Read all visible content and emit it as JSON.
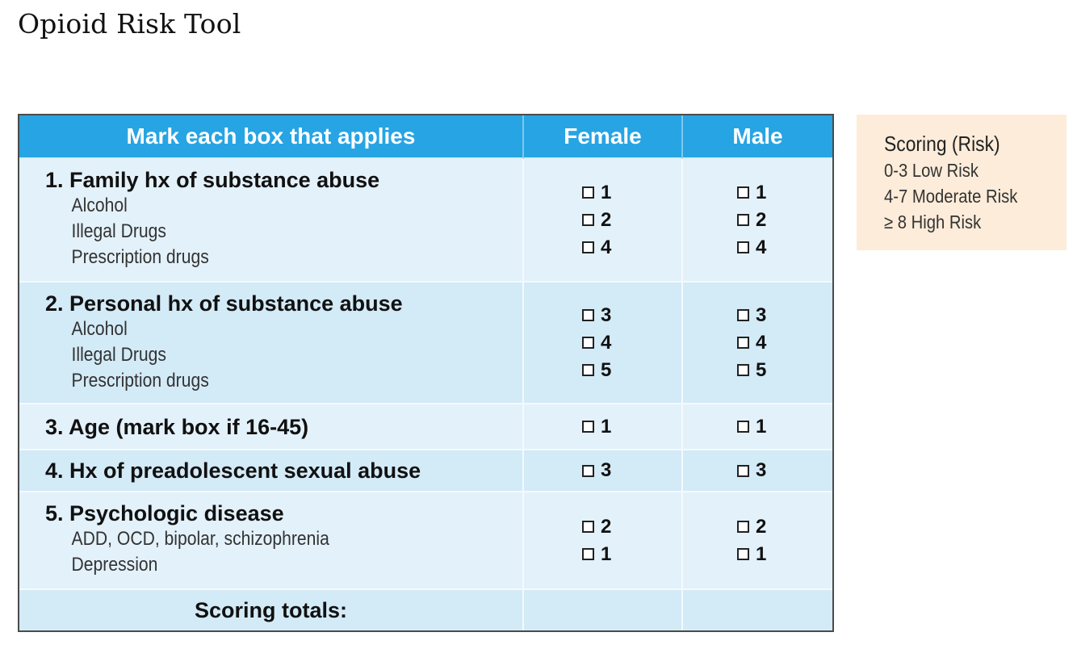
{
  "title": "Opioid Risk Tool",
  "table": {
    "headers": {
      "item": "Mark each box that applies",
      "female": "Female",
      "male": "Male"
    },
    "rows": [
      {
        "title": "1. Family hx of substance abuse",
        "subs": [
          "Alcohol",
          "Illegal Drugs",
          "Prescription drugs"
        ],
        "female": [
          "1",
          "2",
          "4"
        ],
        "male": [
          "1",
          "2",
          "4"
        ]
      },
      {
        "title": "2. Personal hx of substance abuse",
        "subs": [
          "Alcohol",
          "Illegal Drugs",
          "Prescription drugs"
        ],
        "female": [
          "3",
          "4",
          "5"
        ],
        "male": [
          "3",
          "4",
          "5"
        ]
      },
      {
        "title": "3. Age (mark box if 16-45)",
        "subs": [],
        "female": [
          "1"
        ],
        "male": [
          "1"
        ]
      },
      {
        "title": "4. Hx of preadolescent sexual abuse",
        "subs": [],
        "female": [
          "3"
        ],
        "male": [
          "3"
        ]
      },
      {
        "title": "5. Psychologic disease",
        "subs": [
          "ADD, OCD, bipolar, schizophrenia",
          "Depression"
        ],
        "female": [
          "2",
          "1"
        ],
        "male": [
          "2",
          "1"
        ]
      }
    ],
    "totals_label": "Scoring totals:"
  },
  "scoring": {
    "title": "Scoring (Risk)",
    "levels": [
      "0-3 Low Risk",
      "4-7 Moderate Risk",
      "≥ 8 High Risk"
    ]
  }
}
